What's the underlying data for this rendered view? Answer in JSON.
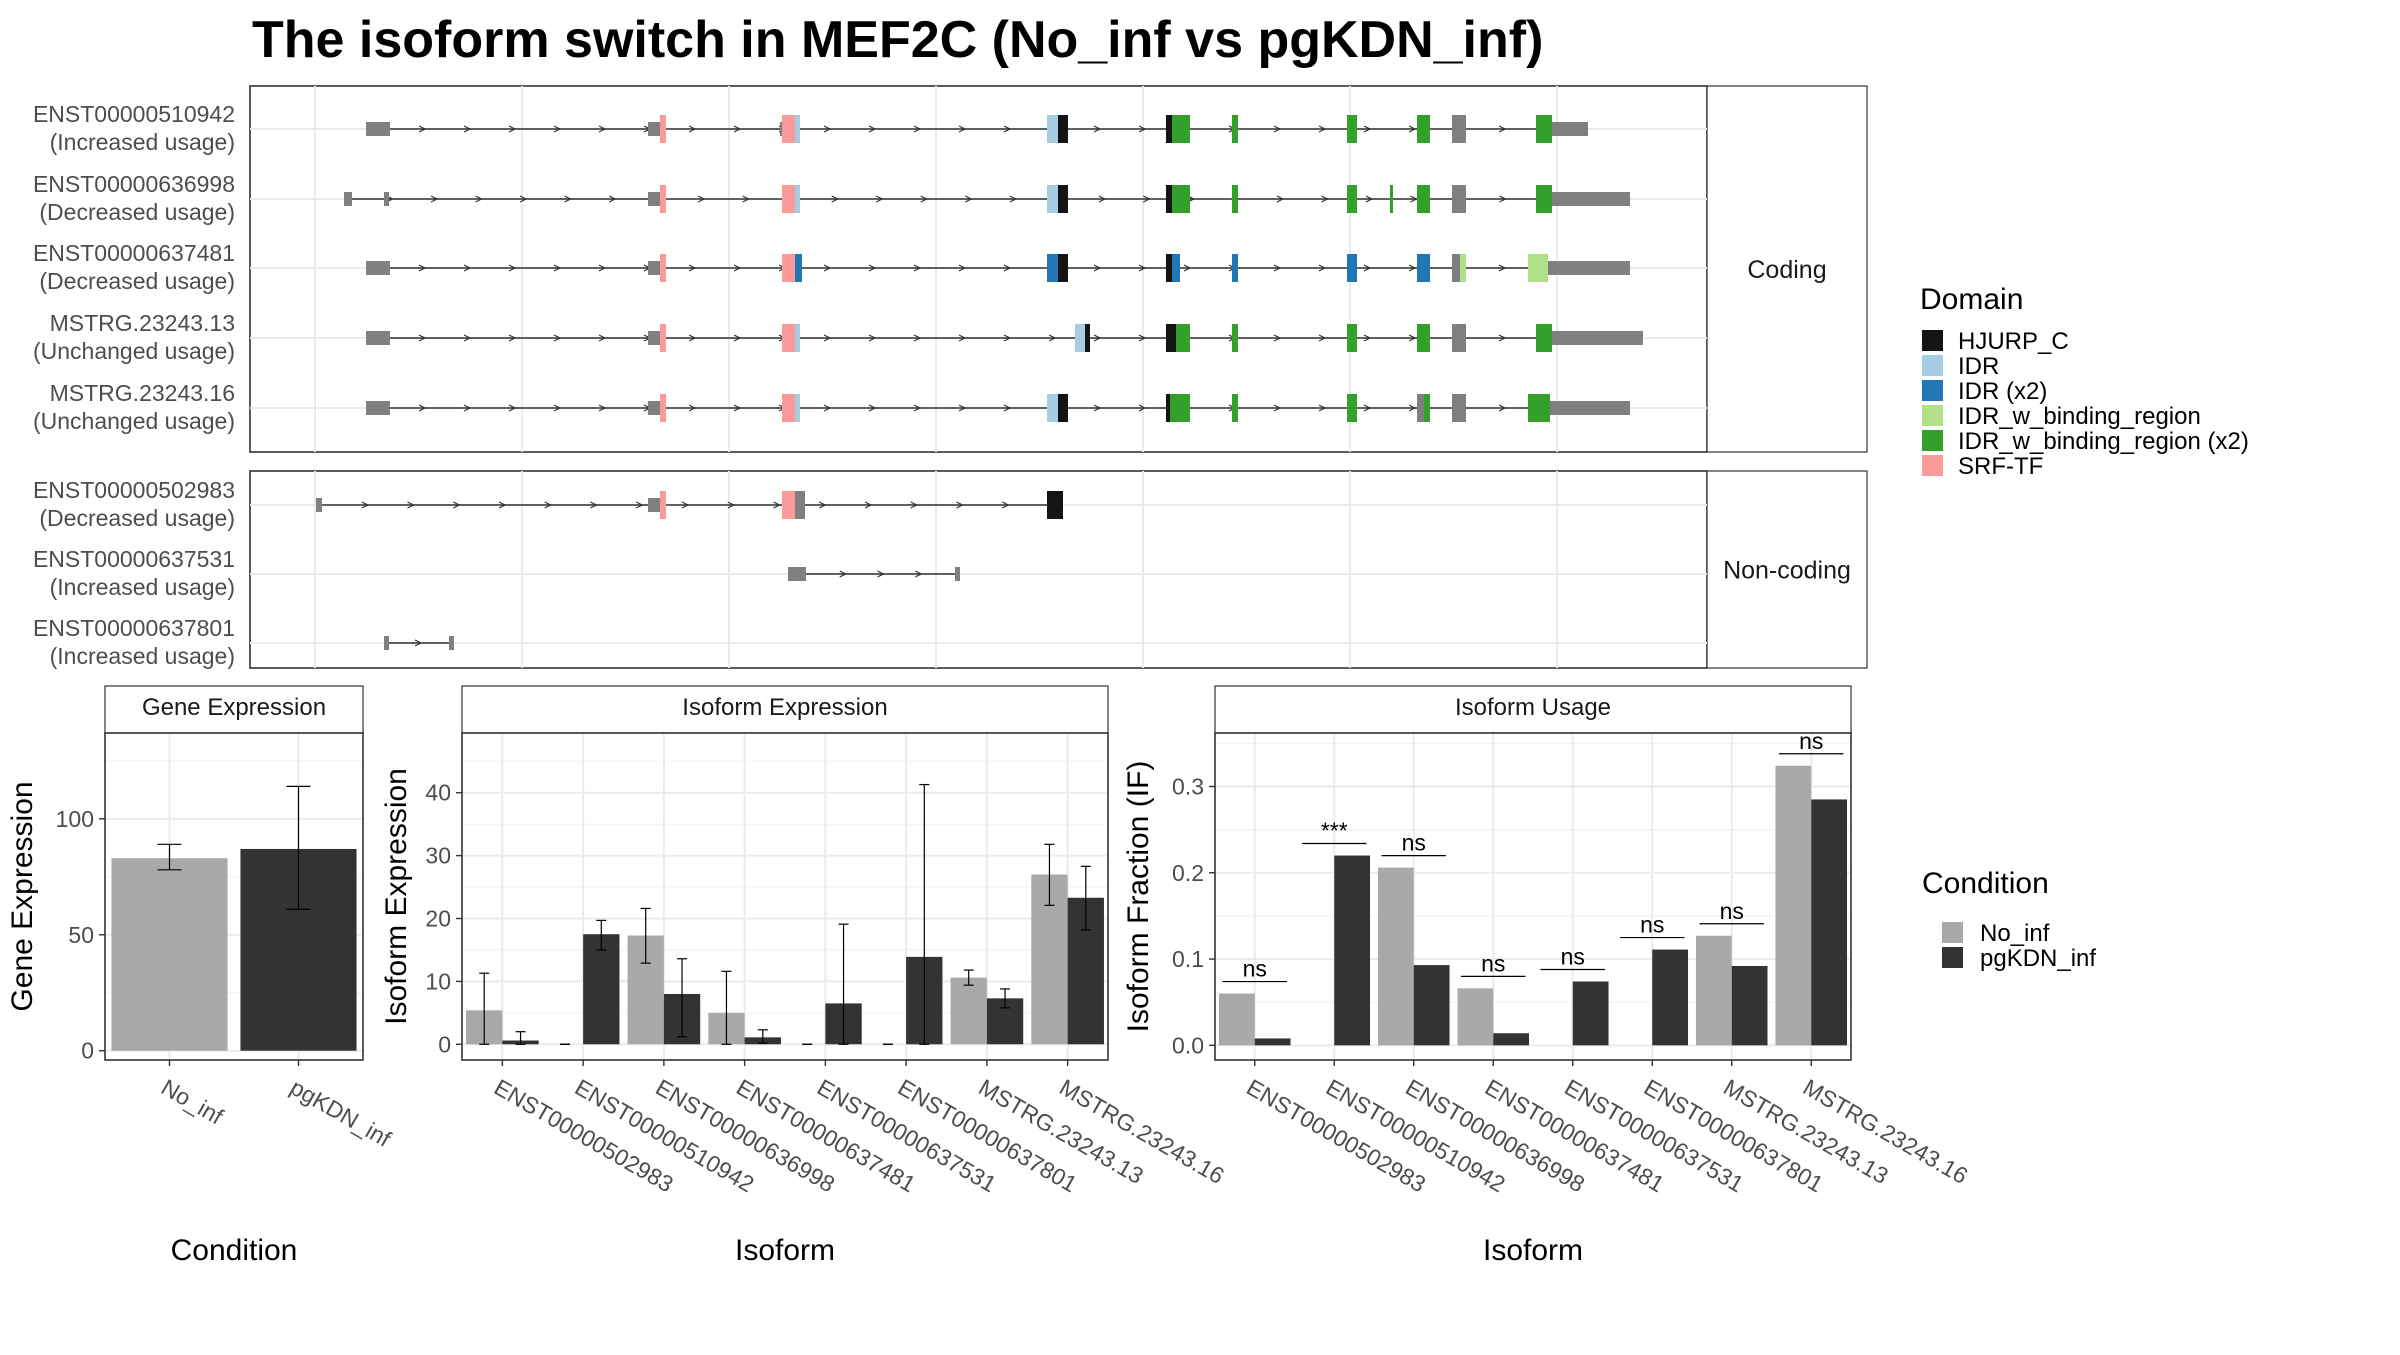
{
  "title": "The isoform switch in MEF2C (No_inf vs pgKDN_inf)",
  "structure": {
    "coding_strip": "Coding",
    "noncoding_strip": "Non-coding",
    "coding": [
      {
        "id": "ENST00000510942",
        "usage": "(Increased usage)"
      },
      {
        "id": "ENST00000636998",
        "usage": "(Decreased usage)"
      },
      {
        "id": "ENST00000637481",
        "usage": "(Decreased usage)"
      },
      {
        "id": "MSTRG.23243.13",
        "usage": "(Unchanged usage)"
      },
      {
        "id": "MSTRG.23243.16",
        "usage": "(Unchanged usage)"
      }
    ],
    "noncoding": [
      {
        "id": "ENST00000502983",
        "usage": "(Decreased usage)"
      },
      {
        "id": "ENST00000637531",
        "usage": "(Increased usage)"
      },
      {
        "id": "ENST00000637801",
        "usage": "(Increased usage)"
      }
    ]
  },
  "legend_domain": {
    "title": "Domain",
    "items": [
      {
        "label": "HJURP_C",
        "color": "#141414"
      },
      {
        "label": "IDR",
        "color": "#a6cee3"
      },
      {
        "label": "IDR (x2)",
        "color": "#1f78b4"
      },
      {
        "label": "IDR_w_binding_region",
        "color": "#b2df8a"
      },
      {
        "label": "IDR_w_binding_region (x2)",
        "color": "#33a02c"
      },
      {
        "label": "SRF-TF",
        "color": "#fb9a99"
      }
    ]
  },
  "legend_condition": {
    "title": "Condition",
    "items": [
      {
        "label": "No_inf",
        "color": "#a9a9a9"
      },
      {
        "label": "pgKDN_inf",
        "color": "#333333"
      }
    ]
  },
  "chart_data": [
    {
      "type": "bar",
      "title": "Gene Expression",
      "xlabel": "Condition",
      "ylabel": "Gene Expression",
      "categories": [
        "No_inf",
        "pgKDN_inf"
      ],
      "values": [
        83,
        87
      ],
      "errors": [
        [
          78,
          89
        ],
        [
          61,
          114
        ]
      ],
      "ylim": [
        -4,
        137
      ],
      "yticks": [
        0,
        50,
        100
      ]
    },
    {
      "type": "bar",
      "title": "Isoform Expression",
      "xlabel": "Isoform",
      "ylabel": "Isoform Expression",
      "categories": [
        "ENST00000502983",
        "ENST00000510942",
        "ENST00000636998",
        "ENST00000637481",
        "ENST00000637531",
        "ENST00000637801",
        "MSTRG.23243.13",
        "MSTRG.23243.16"
      ],
      "series": [
        {
          "name": "No_inf",
          "values": [
            5.4,
            0,
            17.3,
            5.0,
            0,
            0,
            10.6,
            27.0
          ],
          "errors": [
            [
              0,
              11.3
            ],
            [
              0,
              0
            ],
            [
              12.9,
              21.6
            ],
            [
              0,
              11.6
            ],
            [
              0,
              0
            ],
            [
              0,
              0
            ],
            [
              9.4,
              11.8
            ],
            [
              22.1,
              31.8
            ]
          ]
        },
        {
          "name": "pgKDN_inf",
          "values": [
            0.6,
            17.5,
            8.0,
            1.1,
            6.5,
            13.9,
            7.3,
            23.3
          ],
          "errors": [
            [
              0,
              2.0
            ],
            [
              15.0,
              19.7
            ],
            [
              1.2,
              13.6
            ],
            [
              0.2,
              2.3
            ],
            [
              0,
              19.1
            ],
            [
              0,
              41.3
            ],
            [
              5.8,
              8.8
            ],
            [
              18.2,
              28.3
            ]
          ]
        }
      ],
      "ylim": [
        -2.5,
        49.5
      ],
      "yticks": [
        0,
        10,
        20,
        30,
        40
      ]
    },
    {
      "type": "bar",
      "title": "Isoform Usage",
      "xlabel": "Isoform",
      "ylabel": "Isoform Fraction (IF)",
      "categories": [
        "ENST00000502983",
        "ENST00000510942",
        "ENST00000636998",
        "ENST00000637481",
        "ENST00000637531",
        "ENST00000637801",
        "MSTRG.23243.13",
        "MSTRG.23243.16"
      ],
      "series": [
        {
          "name": "No_inf",
          "values": [
            0.06,
            0,
            0.206,
            0.066,
            0,
            0,
            0.127,
            0.324
          ]
        },
        {
          "name": "pgKDN_inf",
          "values": [
            0.008,
            0.22,
            0.093,
            0.014,
            0.074,
            0.111,
            0.092,
            0.285
          ]
        }
      ],
      "significance": [
        "ns",
        "***",
        "ns",
        "ns",
        "ns",
        "ns",
        "ns",
        "ns"
      ],
      "ylim": [
        -0.017,
        0.362
      ],
      "yticks": [
        0.0,
        0.1,
        0.2,
        0.3
      ],
      "ytick_labels": [
        "0.0",
        "0.1",
        "0.2",
        "0.3"
      ]
    }
  ]
}
